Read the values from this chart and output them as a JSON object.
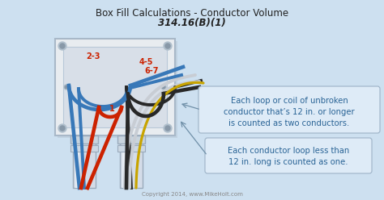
{
  "title_line1": "Box Fill Calculations - Conductor Volume",
  "title_line2": "314.16(B)(1)",
  "bg_color": "#cde0f0",
  "box_face": "#e8ecf0",
  "box_inner": "#d8dfe8",
  "box_edge": "#a8b8c8",
  "text_color": "#2a6496",
  "label_23": "2-3",
  "label_45": "4-5",
  "label_67": "6-7",
  "label_1": "1",
  "ann1_l1": "Each loop or coil of unbroken",
  "ann1_l2": "conductor that’s 12 in. or longer",
  "ann1_l3": "is counted as two conductors.",
  "ann2_l1": "Each conductor loop less than",
  "ann2_l2": "12 in. long is counted as one.",
  "copyright": "Copyright 2014, www.MikeHolt.com",
  "wire_blue": "#3878b8",
  "wire_red": "#cc2200",
  "wire_black": "#282828",
  "wire_white": "#c8cdd4",
  "wire_gold": "#c8a400",
  "pipe_face": "#d4dce8",
  "pipe_edge": "#9aaabb",
  "pipe_shine": "#e8eef5",
  "screw_outer": "#b0bfcc",
  "screw_inner": "#8898a8"
}
